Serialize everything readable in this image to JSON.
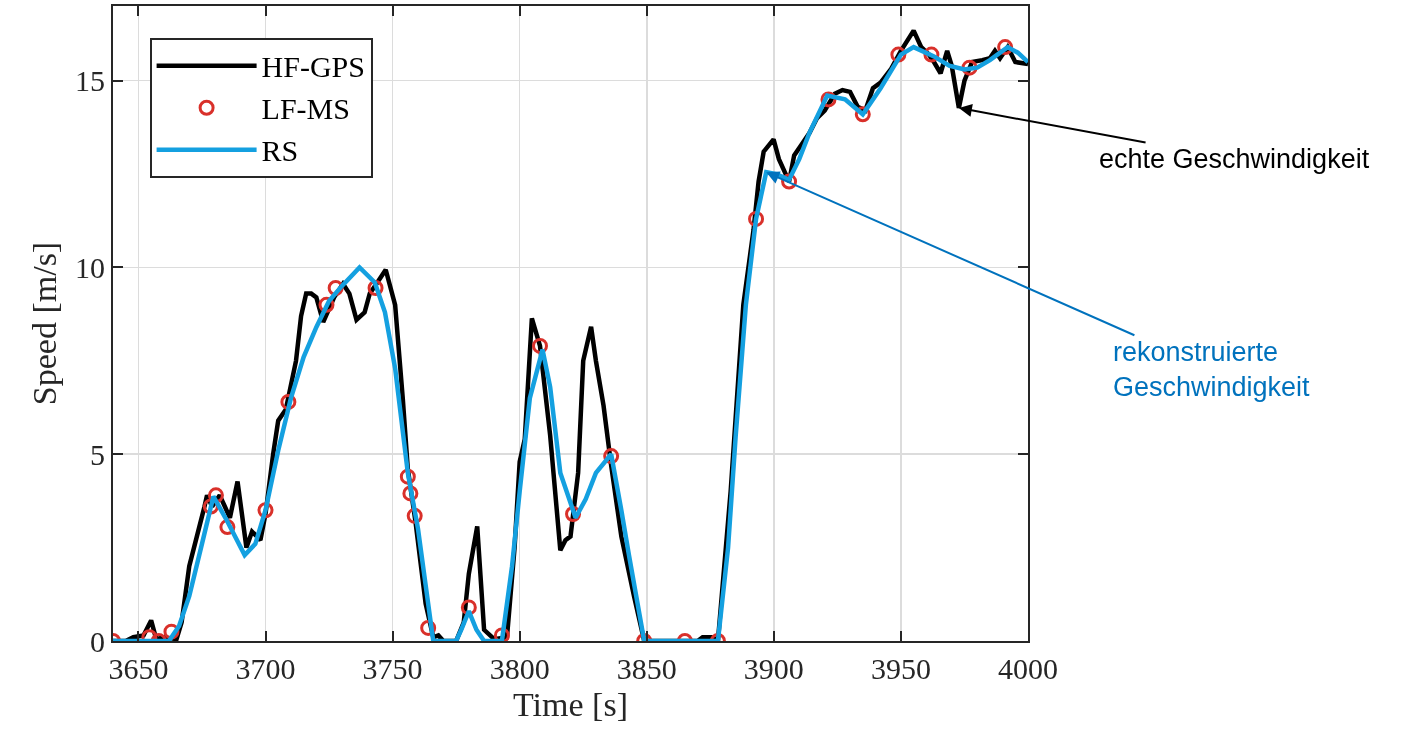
{
  "chart_data": {
    "type": "line",
    "xlabel": "Time [s]",
    "ylabel": "Speed [m/s]",
    "xlim": [
      3640,
      4000
    ],
    "xticks": [
      3650,
      3700,
      3750,
      3800,
      3850,
      3900,
      3950,
      4000
    ],
    "ylim": [
      0,
      17
    ],
    "yticks": [
      0,
      5,
      10,
      15
    ],
    "grid": true,
    "legend": "top left",
    "series": [
      {
        "name": "HF-GPS",
        "type": "line",
        "color": "#000000",
        "line_style": "solid",
        "x": [
          3640,
          3645,
          3648,
          3652,
          3655,
          3657,
          3660,
          3665,
          3667,
          3670,
          3673,
          3676,
          3677,
          3679,
          3682,
          3684,
          3686,
          3689,
          3692.5,
          3694.7,
          3698,
          3700,
          3703,
          3705,
          3708,
          3712,
          3714,
          3716,
          3718,
          3720,
          3722.7,
          3727,
          3730.5,
          3733,
          3735.8,
          3739,
          3741,
          3744,
          3747.3,
          3751,
          3754,
          3756,
          3759,
          3763,
          3766,
          3768,
          3770,
          3775,
          3778,
          3780,
          3783.3,
          3786,
          3790,
          3795,
          3798,
          3800,
          3802,
          3804.8,
          3808,
          3812,
          3816,
          3818,
          3820,
          3823,
          3825,
          3828.1,
          3830,
          3833,
          3836,
          3840,
          3845,
          3849,
          3870,
          3872,
          3876,
          3878,
          3883,
          3888,
          3892,
          3894,
          3896,
          3899.9,
          3902,
          3904,
          3906,
          3908,
          3911,
          3914,
          3917,
          3920,
          3924,
          3927,
          3930,
          3933,
          3936,
          3939,
          3942,
          3946,
          3950,
          3955,
          3958,
          3961,
          3963,
          3965.6,
          3968.2,
          3970,
          3972.8,
          3975,
          3978,
          3982,
          3985,
          3987,
          3989,
          3992,
          3995,
          4000
        ],
        "values": [
          0,
          0,
          0.1,
          0.15,
          0.55,
          0.05,
          0.1,
          0.05,
          0.5,
          2.0,
          2.8,
          3.6,
          3.9,
          3.6,
          3.9,
          3.6,
          3.3,
          4.27,
          2.5,
          2.93,
          2.7,
          3.4,
          5.0,
          5.9,
          6.2,
          7.5,
          8.7,
          9.3,
          9.3,
          9.2,
          8.54,
          9.2,
          9.56,
          9.3,
          8.6,
          8.8,
          9.3,
          9.6,
          9.94,
          9.0,
          6.5,
          4.6,
          3.2,
          1.0,
          0.1,
          0.15,
          0,
          0,
          0.5,
          1.8,
          3.07,
          0.3,
          0.05,
          0.1,
          2.5,
          4.8,
          5.4,
          8.64,
          7.9,
          5.5,
          2.43,
          2.7,
          2.8,
          4.5,
          7.5,
          8.41,
          7.5,
          6.3,
          4.7,
          2.8,
          1.2,
          0,
          0,
          0.1,
          0.1,
          0,
          4.0,
          9.0,
          11.0,
          12.3,
          13.1,
          13.43,
          12.9,
          12.6,
          12.3,
          13.0,
          13.3,
          13.6,
          14.0,
          14.2,
          14.65,
          14.75,
          14.7,
          14.3,
          14.2,
          14.8,
          14.95,
          15.3,
          15.8,
          16.34,
          15.9,
          15.7,
          15.5,
          15.2,
          15.8,
          15.4,
          14.27,
          15.0,
          15.5,
          15.55,
          15.6,
          15.8,
          15.6,
          15.9,
          15.5,
          15.45
        ]
      },
      {
        "name": "LF-MS",
        "type": "scatter",
        "marker": "circle",
        "color": "#d9302a",
        "x": [
          3640,
          3654.3,
          3658,
          3663,
          3678.5,
          3680.5,
          3685,
          3700,
          3709,
          3724,
          3727.6,
          3743.3,
          3756,
          3757,
          3758.7,
          3764,
          3780,
          3793,
          3808,
          3821,
          3836,
          3849,
          3865,
          3878,
          3893,
          3906,
          3921.5,
          3935,
          3949,
          3962,
          3977,
          3991
        ],
        "values": [
          0,
          0.1,
          0,
          0.25,
          3.6,
          3.9,
          3.05,
          3.5,
          6.4,
          9.0,
          9.45,
          9.45,
          4.4,
          3.95,
          3.35,
          0.35,
          0.9,
          0.15,
          7.9,
          3.4,
          4.95,
          0,
          0,
          0,
          11.3,
          12.3,
          14.5,
          14.1,
          15.7,
          15.7,
          15.35,
          15.9
        ]
      },
      {
        "name": "RS",
        "type": "line",
        "color": "#14a0e0",
        "line_style": "solid",
        "x": [
          3640,
          3662,
          3666,
          3670,
          3675,
          3679.5,
          3685,
          3691.8,
          3696,
          3700,
          3705,
          3710,
          3715,
          3720,
          3725,
          3730,
          3737,
          3743,
          3747,
          3751,
          3756,
          3760,
          3763,
          3766,
          3775,
          3777,
          3780,
          3783,
          3786,
          3793,
          3797,
          3800,
          3804,
          3809,
          3812,
          3816,
          3822,
          3826,
          3830,
          3836,
          3840,
          3843,
          3849,
          3878,
          3882,
          3885,
          3889,
          3893,
          3897,
          3901,
          3906,
          3910,
          3914,
          3921,
          3928,
          3935,
          3942,
          3950,
          3955,
          3963,
          3969,
          3975,
          3980,
          3985,
          3992,
          3996,
          4000
        ],
        "values": [
          0,
          0,
          0.4,
          1.2,
          2.6,
          3.87,
          3.2,
          2.3,
          2.6,
          3.5,
          5.1,
          6.5,
          7.6,
          8.4,
          9.1,
          9.5,
          10.0,
          9.6,
          8.8,
          7.3,
          4.5,
          3.0,
          1.5,
          0,
          0,
          0.3,
          0.8,
          0.3,
          0,
          0,
          2.0,
          4.0,
          6.5,
          7.8,
          6.8,
          4.5,
          3.3,
          3.8,
          4.5,
          5.0,
          3.5,
          2.3,
          0,
          0,
          2.5,
          5.5,
          9.0,
          11.3,
          12.55,
          12.5,
          12.35,
          12.9,
          13.6,
          14.6,
          14.5,
          14.1,
          14.8,
          15.7,
          15.9,
          15.65,
          15.4,
          15.3,
          15.35,
          15.55,
          15.9,
          15.75,
          15.5
        ]
      }
    ],
    "annotations": [
      {
        "text": "echte Geschwindigkeit",
        "x": 3972.8,
        "y": 14.27
      },
      {
        "text": "rekonstruierte Geschwindigkeit",
        "x": 3897,
        "y": 12.55
      }
    ]
  }
}
